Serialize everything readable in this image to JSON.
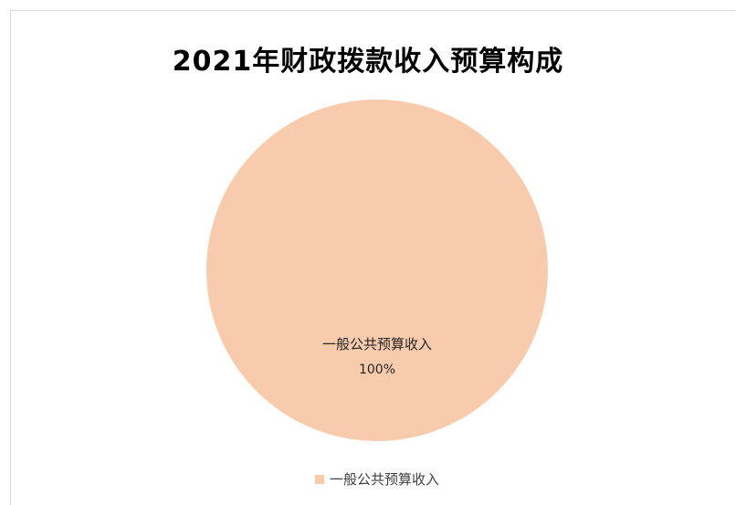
{
  "chart_data": {
    "type": "pie",
    "title": "2021年财政拨款收入预算构成",
    "categories": [
      "一般公共预算收入"
    ],
    "values": [
      100
    ],
    "value_labels": [
      "100%"
    ],
    "colors": [
      "#f8cbad"
    ],
    "legend": {
      "position": "bottom",
      "entries": [
        "一般公共预算收入"
      ]
    }
  }
}
